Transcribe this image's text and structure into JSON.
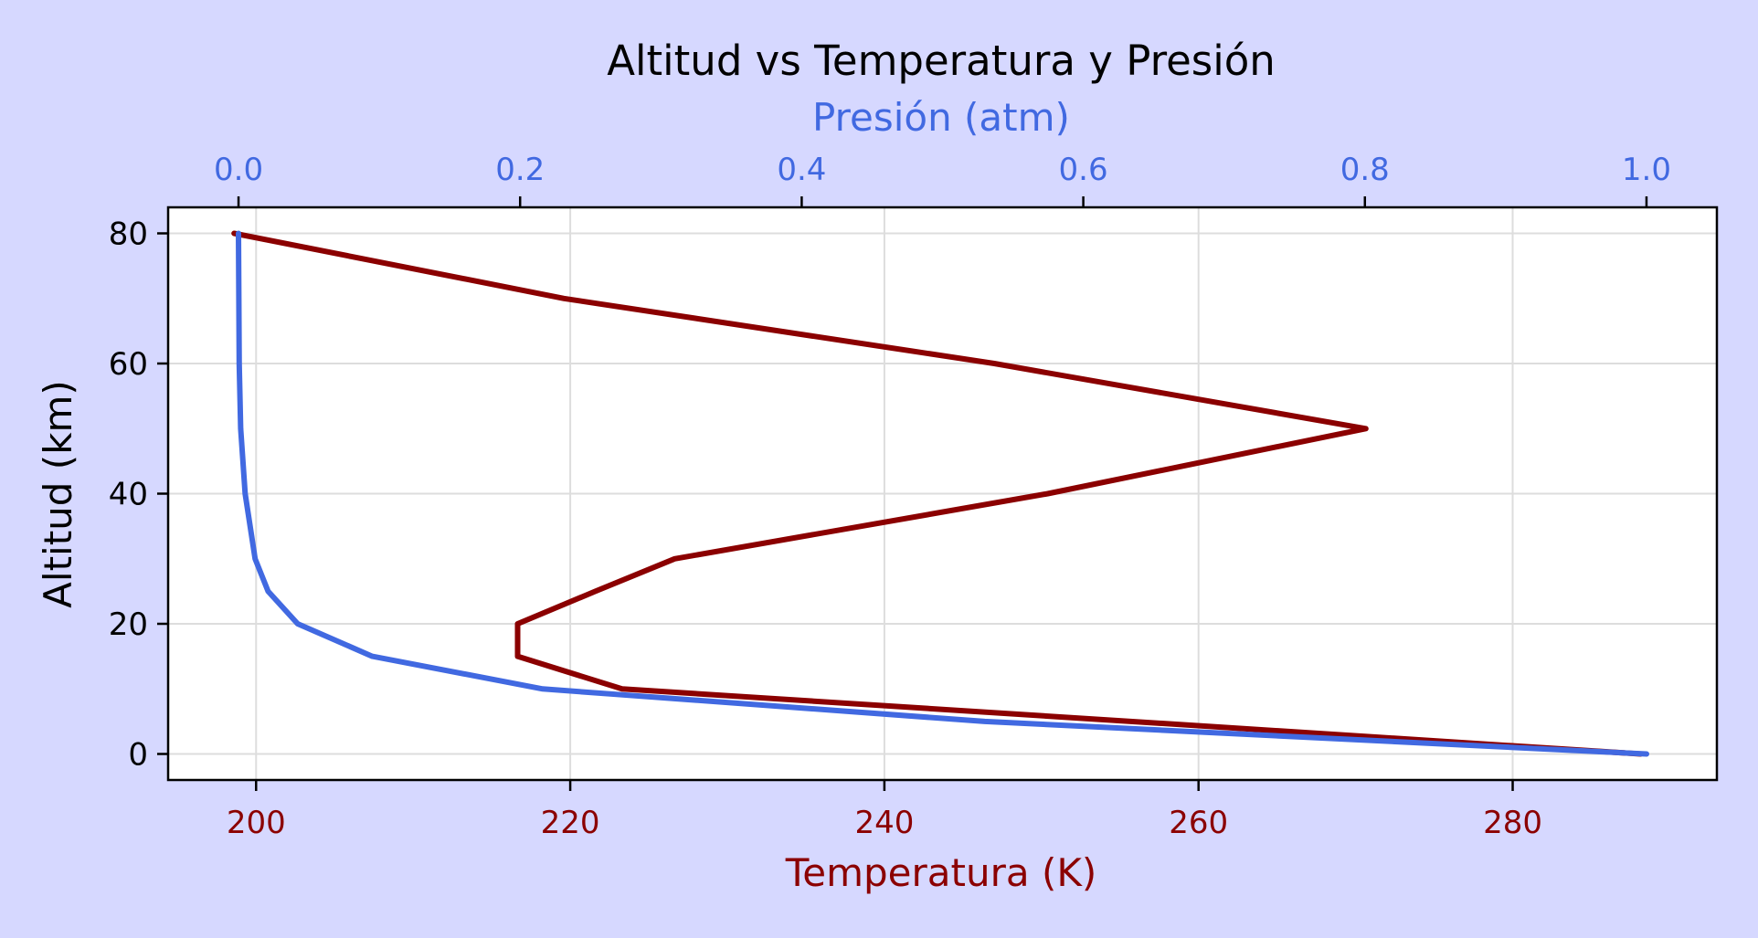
{
  "chart_data": {
    "type": "line",
    "title": "Altitud vs Temperatura y Presión",
    "ylabel": "Altitud (km)",
    "xlabel_bottom": "Temperatura (K)",
    "xlabel_top": "Presión (atm)",
    "ylim": [
      -4,
      84
    ],
    "xlim_bottom": [
      194.4,
      293
    ],
    "xlim_top": [
      -0.05,
      1.05
    ],
    "yticks": [
      0,
      20,
      40,
      60,
      80
    ],
    "xticks_bottom": [
      200,
      220,
      240,
      260,
      280
    ],
    "xticks_top": [
      "0.0",
      "0.2",
      "0.4",
      "0.6",
      "0.8",
      "1.0"
    ],
    "grid": true,
    "series": [
      {
        "axis": "bottom",
        "color": "#8b0000",
        "points": [
          {
            "y": 0,
            "x": 288.15
          },
          {
            "y": 10,
            "x": 223.3
          },
          {
            "y": 15,
            "x": 216.65
          },
          {
            "y": 20,
            "x": 216.65
          },
          {
            "y": 25,
            "x": 221.6
          },
          {
            "y": 30,
            "x": 226.65
          },
          {
            "y": 40,
            "x": 250.4
          },
          {
            "y": 50,
            "x": 270.65
          },
          {
            "y": 60,
            "x": 247.0
          },
          {
            "y": 70,
            "x": 219.6
          },
          {
            "y": 80,
            "x": 198.6
          }
        ]
      },
      {
        "axis": "top",
        "color": "#4169e1",
        "points": [
          {
            "y": 0,
            "x": 1.0
          },
          {
            "y": 5,
            "x": 0.53
          },
          {
            "y": 10,
            "x": 0.216
          },
          {
            "y": 15,
            "x": 0.095
          },
          {
            "y": 20,
            "x": 0.042
          },
          {
            "y": 25,
            "x": 0.021
          },
          {
            "y": 30,
            "x": 0.0118
          },
          {
            "y": 40,
            "x": 0.0047
          },
          {
            "y": 50,
            "x": 0.0015
          },
          {
            "y": 60,
            "x": 0.0005
          },
          {
            "y": 70,
            "x": 0.0002
          },
          {
            "y": 80,
            "x": 0.0
          }
        ]
      }
    ],
    "colors": {
      "background": "#d6d8ff",
      "temperature": "#8b0000",
      "pressure": "#4169e1",
      "grid": "#dddddd"
    }
  }
}
